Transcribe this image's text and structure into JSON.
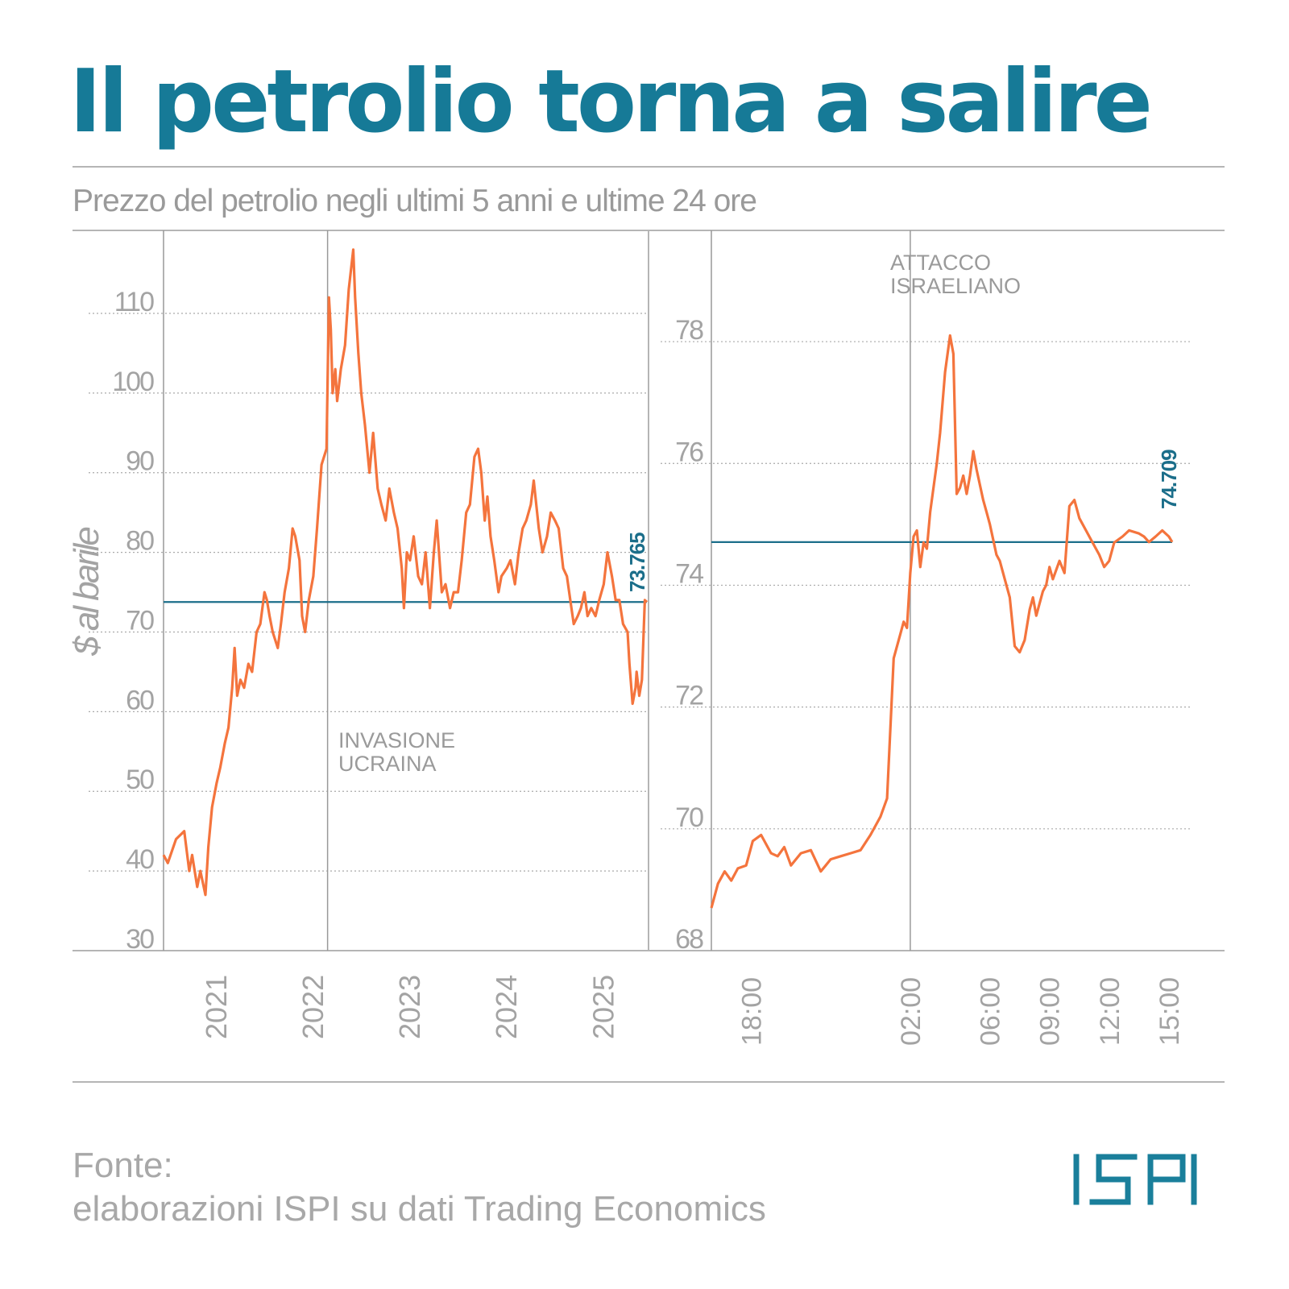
{
  "header": {
    "title": "Il petrolio torna a salire",
    "subtitle": "Prezzo del petrolio negli ultimi 5 anni e ultime 24 ore"
  },
  "footer": {
    "source_label": "Fonte:",
    "source_text": "elaborazioni ISPI su dati Trading Economics",
    "logo_text": "ISPI"
  },
  "colors": {
    "title": "#167a97",
    "series": "#f4743d",
    "reference_line": "#1b6e8a",
    "grid": "#aaaaaa",
    "axis": "#999999",
    "text_muted": "#9a9a9a",
    "logo": "#1a7f9b"
  },
  "chart_data": [
    {
      "type": "line",
      "title": "",
      "xlabel": "",
      "ylabel": "$ al barile",
      "ylim": [
        30,
        119
      ],
      "yticks": [
        30,
        40,
        50,
        60,
        70,
        80,
        90,
        100,
        110
      ],
      "xticks": [
        "2021",
        "2022",
        "2023",
        "2024",
        "2025"
      ],
      "grid": true,
      "annotation": "INVASIONE UCRAINA",
      "reference_value": 73.765,
      "reference_label": "73.765",
      "series": [
        {
          "x": [
            "2020-06-15",
            "2020-07-01",
            "2020-08-01",
            "2020-09-01",
            "2020-09-20",
            "2020-10-01",
            "2020-10-20",
            "2020-11-01",
            "2020-11-20",
            "2020-12-01",
            "2020-12-15",
            "2021-01-01",
            "2021-01-15",
            "2021-02-01",
            "2021-02-15",
            "2021-03-01",
            "2021-03-10",
            "2021-03-20",
            "2021-04-01",
            "2021-04-15",
            "2021-05-01",
            "2021-05-15",
            "2021-06-01",
            "2021-06-15",
            "2021-07-01",
            "2021-07-10",
            "2021-07-20",
            "2021-08-01",
            "2021-08-20",
            "2021-09-01",
            "2021-09-15",
            "2021-10-01",
            "2021-10-15",
            "2021-10-25",
            "2021-11-10",
            "2021-11-20",
            "2021-12-01",
            "2021-12-15",
            "2022-01-01",
            "2022-01-15",
            "2022-02-01",
            "2022-02-20",
            "2022-03-01",
            "2022-03-08",
            "2022-03-15",
            "2022-03-25",
            "2022-04-01",
            "2022-04-15",
            "2022-05-01",
            "2022-05-15",
            "2022-06-01",
            "2022-06-08",
            "2022-06-20",
            "2022-07-01",
            "2022-07-15",
            "2022-08-01",
            "2022-08-15",
            "2022-09-01",
            "2022-09-15",
            "2022-10-01",
            "2022-10-15",
            "2022-11-01",
            "2022-11-15",
            "2022-12-01",
            "2022-12-09",
            "2022-12-20",
            "2023-01-01",
            "2023-01-15",
            "2023-02-01",
            "2023-02-15",
            "2023-03-01",
            "2023-03-17",
            "2023-04-01",
            "2023-04-12",
            "2023-05-01",
            "2023-05-15",
            "2023-06-01",
            "2023-06-15",
            "2023-07-01",
            "2023-07-15",
            "2023-08-01",
            "2023-08-15",
            "2023-09-01",
            "2023-09-15",
            "2023-09-27",
            "2023-10-10",
            "2023-10-20",
            "2023-11-01",
            "2023-11-15",
            "2023-12-01",
            "2023-12-12",
            "2024-01-01",
            "2024-01-15",
            "2024-02-01",
            "2024-02-15",
            "2024-03-01",
            "2024-03-15",
            "2024-04-01",
            "2024-04-12",
            "2024-05-01",
            "2024-05-15",
            "2024-06-01",
            "2024-06-15",
            "2024-07-01",
            "2024-07-15",
            "2024-08-01",
            "2024-08-15",
            "2024-09-01",
            "2024-09-10",
            "2024-09-25",
            "2024-10-07",
            "2024-10-20",
            "2024-11-01",
            "2024-11-15",
            "2024-12-01",
            "2024-12-15",
            "2025-01-01",
            "2025-01-15",
            "2025-02-01",
            "2025-02-15",
            "2025-03-01",
            "2025-03-15",
            "2025-04-01",
            "2025-04-08",
            "2025-04-20",
            "2025-05-01",
            "2025-05-05",
            "2025-05-15",
            "2025-05-25",
            "2025-06-05",
            "2025-06-13"
          ],
          "values": [
            42,
            41,
            44,
            45,
            40,
            42,
            38,
            40,
            37,
            43,
            48,
            51,
            53,
            56,
            58,
            63,
            68,
            62,
            64,
            63,
            66,
            65,
            70,
            71,
            75,
            74,
            72,
            70,
            68,
            71,
            75,
            78,
            83,
            82,
            79,
            72,
            70,
            74,
            77,
            83,
            91,
            93,
            112,
            108,
            100,
            103,
            99,
            103,
            106,
            113,
            118,
            112,
            105,
            100,
            96,
            90,
            95,
            88,
            86,
            84,
            88,
            85,
            83,
            78,
            73,
            80,
            79,
            82,
            77,
            76,
            80,
            73,
            80,
            84,
            75,
            76,
            73,
            75,
            75,
            79,
            85,
            86,
            92,
            93,
            90,
            84,
            87,
            82,
            79,
            75,
            77,
            78,
            79,
            76,
            80,
            83,
            84,
            86,
            89,
            83,
            80,
            82,
            85,
            84,
            83,
            78,
            77,
            73,
            71,
            72,
            73,
            75,
            72,
            73,
            72,
            74,
            76,
            80,
            77,
            74,
            74,
            71,
            70,
            66,
            61,
            63,
            65,
            62,
            64,
            74,
            73.765
          ]
        }
      ]
    },
    {
      "type": "line",
      "title": "",
      "xlabel": "",
      "ylabel": "",
      "ylim": [
        68,
        79.8
      ],
      "yticks": [
        68,
        70,
        72,
        74,
        76,
        78
      ],
      "xticks": [
        "18:00",
        "02:00",
        "06:00",
        "09:00",
        "12:00",
        "15:00"
      ],
      "grid": true,
      "annotation": "ATTACCO ISRAELIANO",
      "reference_value": 74.709,
      "reference_label": "74.709",
      "series": [
        {
          "x": [
            "16:00",
            "16:20",
            "16:40",
            "17:00",
            "17:20",
            "17:45",
            "18:05",
            "18:30",
            "19:00",
            "19:20",
            "19:40",
            "20:00",
            "20:30",
            "21:00",
            "21:30",
            "21:45",
            "22:00",
            "22:30",
            "23:00",
            "23:30",
            "00:00",
            "00:30",
            "00:50",
            "01:10",
            "01:30",
            "01:40",
            "01:50",
            "02:00",
            "02:10",
            "02:20",
            "02:30",
            "02:40",
            "02:50",
            "03:00",
            "03:20",
            "03:30",
            "03:45",
            "04:00",
            "04:10",
            "04:20",
            "04:30",
            "04:40",
            "04:50",
            "05:00",
            "05:10",
            "05:20",
            "05:40",
            "05:50",
            "06:00",
            "06:20",
            "06:30",
            "06:45",
            "07:00",
            "07:15",
            "07:30",
            "07:45",
            "08:00",
            "08:10",
            "08:20",
            "08:30",
            "08:40",
            "08:50",
            "09:00",
            "09:10",
            "09:30",
            "09:45",
            "10:00",
            "10:15",
            "10:30",
            "10:50",
            "11:10",
            "11:30",
            "11:45",
            "12:00",
            "12:15",
            "12:40",
            "13:00",
            "13:30",
            "13:45",
            "14:00",
            "14:20",
            "14:40",
            "15:00",
            "15:10"
          ],
          "values": [
            68.7,
            69.1,
            69.3,
            69.15,
            69.35,
            69.4,
            69.8,
            69.9,
            69.6,
            69.55,
            69.7,
            69.4,
            69.6,
            69.65,
            69.3,
            69.4,
            69.5,
            69.55,
            69.6,
            69.65,
            69.9,
            70.2,
            70.5,
            72.8,
            73.2,
            73.4,
            73.3,
            74.2,
            74.8,
            74.9,
            74.3,
            74.7,
            74.6,
            75.2,
            76.0,
            76.5,
            77.5,
            78.1,
            77.8,
            75.5,
            75.6,
            75.8,
            75.5,
            75.8,
            76.2,
            75.9,
            75.4,
            75.2,
            75.0,
            74.5,
            74.4,
            74.1,
            73.8,
            73.0,
            72.9,
            73.1,
            73.6,
            73.8,
            73.5,
            73.7,
            73.9,
            74.0,
            74.3,
            74.1,
            74.4,
            74.2,
            75.3,
            75.4,
            75.1,
            74.9,
            74.7,
            74.5,
            74.3,
            74.4,
            74.7,
            74.8,
            74.9,
            74.85,
            74.8,
            74.709,
            74.8,
            74.9,
            74.8,
            74.709
          ]
        }
      ]
    }
  ]
}
